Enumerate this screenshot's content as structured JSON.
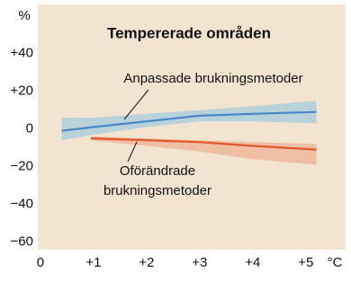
{
  "chart_data": {
    "type": "line",
    "title": "Tempererade områden",
    "ylabel": "%",
    "xlabel": "°C",
    "xlim": [
      -0.05,
      5.75
    ],
    "ylim": [
      -64,
      66
    ],
    "xticks": [
      0,
      {
        "value": 1,
        "label": "+1"
      },
      {
        "value": 2,
        "label": "+2"
      },
      {
        "value": 3,
        "label": "+3"
      },
      {
        "value": 4,
        "label": "+4"
      },
      {
        "value": 5,
        "label": "+5"
      }
    ],
    "yticks": [
      {
        "value": 40,
        "label": "+40"
      },
      {
        "value": 20,
        "label": "+20"
      },
      0,
      {
        "value": -20,
        "label": "−20"
      },
      {
        "value": -40,
        "label": "−40"
      },
      {
        "value": -60,
        "label": "−60"
      }
    ],
    "grid": false,
    "background": "#f3e4d1",
    "series": [
      {
        "name": [
          "Anpassade brukningsmetoder"
        ],
        "color": "#4a87c9",
        "band_color": "#b7d2d8",
        "x": [
          0.4,
          1,
          2,
          3,
          4,
          5.2
        ],
        "values": [
          -1,
          1,
          4,
          7,
          8,
          9
        ],
        "lower": [
          -6,
          -3,
          1,
          4,
          4,
          3
        ],
        "upper": [
          6,
          6,
          8,
          10,
          12,
          15
        ]
      },
      {
        "name": [
          "Oförändrade",
          "brukningsmetoder"
        ],
        "color": "#e1562b",
        "band_color": "#eebfa2",
        "x": [
          0.95,
          2,
          3,
          4,
          5.2
        ],
        "values": [
          -5,
          -6,
          -7,
          -9,
          -11
        ],
        "lower": [
          -6,
          -9,
          -12,
          -16,
          -19
        ],
        "upper": [
          -4,
          -5,
          -6,
          -7,
          -8
        ]
      }
    ]
  }
}
